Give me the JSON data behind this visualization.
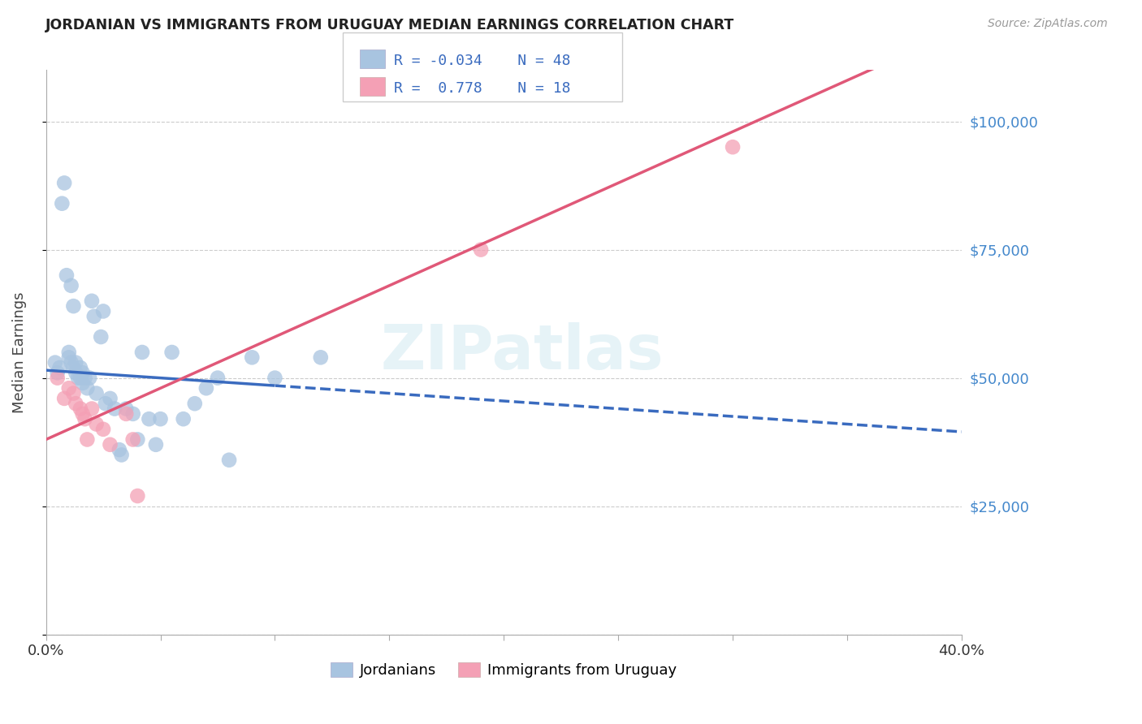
{
  "title": "JORDANIAN VS IMMIGRANTS FROM URUGUAY MEDIAN EARNINGS CORRELATION CHART",
  "source": "Source: ZipAtlas.com",
  "ylabel": "Median Earnings",
  "xlim": [
    0,
    0.4
  ],
  "ylim": [
    0,
    110000
  ],
  "yticks": [
    0,
    25000,
    50000,
    75000,
    100000
  ],
  "ytick_labels": [
    "",
    "$25,000",
    "$50,000",
    "$75,000",
    "$100,000"
  ],
  "xticks": [
    0.0,
    0.05,
    0.1,
    0.15,
    0.2,
    0.25,
    0.3,
    0.35,
    0.4
  ],
  "watermark": "ZIPatlas",
  "color_jordanian": "#a8c4e0",
  "color_uruguay": "#f4a0b5",
  "color_line_jordanian": "#3a6bbf",
  "color_line_uruguay": "#e05878",
  "color_axis_right": "#4488cc",
  "background": "#ffffff",
  "jordanian_x": [
    0.004,
    0.005,
    0.006,
    0.007,
    0.008,
    0.009,
    0.01,
    0.01,
    0.011,
    0.011,
    0.012,
    0.012,
    0.013,
    0.013,
    0.014,
    0.015,
    0.015,
    0.016,
    0.016,
    0.017,
    0.018,
    0.019,
    0.02,
    0.021,
    0.022,
    0.024,
    0.025,
    0.026,
    0.028,
    0.03,
    0.032,
    0.033,
    0.035,
    0.038,
    0.04,
    0.042,
    0.045,
    0.048,
    0.05,
    0.055,
    0.06,
    0.065,
    0.07,
    0.075,
    0.08,
    0.09,
    0.1,
    0.12
  ],
  "jordanian_y": [
    53000,
    51000,
    52000,
    84000,
    88000,
    70000,
    55000,
    54000,
    53000,
    68000,
    64000,
    52000,
    53000,
    51000,
    50000,
    52000,
    50000,
    49000,
    51000,
    50000,
    48000,
    50000,
    65000,
    62000,
    47000,
    58000,
    63000,
    45000,
    46000,
    44000,
    36000,
    35000,
    44000,
    43000,
    38000,
    55000,
    42000,
    37000,
    42000,
    55000,
    42000,
    45000,
    48000,
    50000,
    34000,
    54000,
    50000,
    54000
  ],
  "uruguay_x": [
    0.005,
    0.008,
    0.01,
    0.012,
    0.013,
    0.015,
    0.016,
    0.017,
    0.018,
    0.02,
    0.022,
    0.025,
    0.028,
    0.035,
    0.038,
    0.04,
    0.19,
    0.3
  ],
  "uruguay_y": [
    50000,
    46000,
    48000,
    47000,
    45000,
    44000,
    43000,
    42000,
    38000,
    44000,
    41000,
    40000,
    37000,
    43000,
    38000,
    27000,
    75000,
    95000
  ],
  "jord_line_slope": -30000,
  "jord_line_intercept": 51500,
  "urug_line_slope": 200000,
  "urug_line_intercept": 38000
}
